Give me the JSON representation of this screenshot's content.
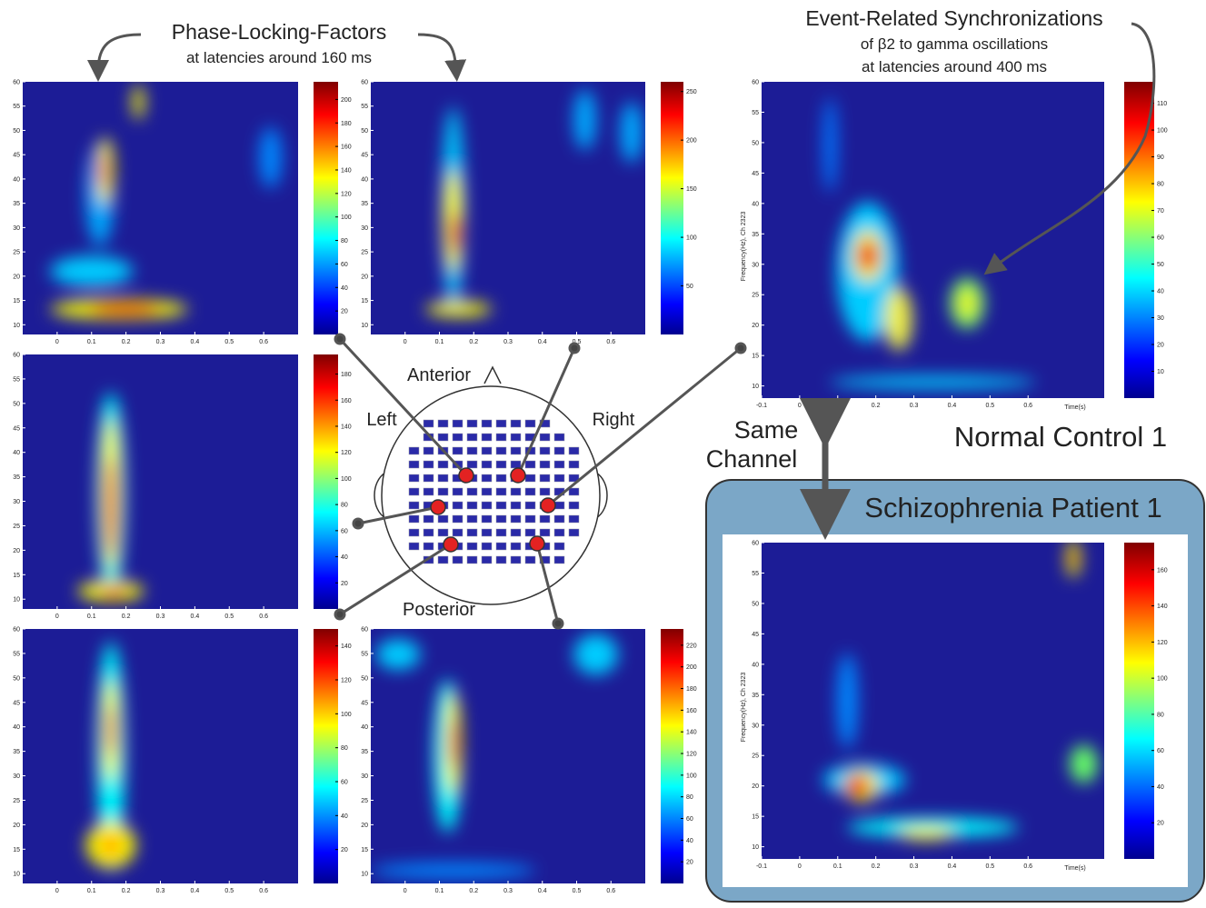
{
  "plf": {
    "title": "Phase-Locking-Factors",
    "subtitle": "at latencies around 160 ms"
  },
  "ers": {
    "title": "Event-Related Synchronizations",
    "line2": "of β2 to gamma oscillations",
    "line3": "at latencies around 400 ms"
  },
  "head": {
    "anterior": "Anterior",
    "left": "Left",
    "right": "Right",
    "posterior": "Posterior"
  },
  "same_channel": [
    "Same",
    "Channel"
  ],
  "normal_label": "Normal Control 1",
  "patient_label": "Schizophrenia Patient 1",
  "panels": [
    {
      "xlim": [
        -0.1,
        0.7
      ],
      "ylim": [
        8,
        60
      ],
      "xticks": [
        0,
        0.1,
        0.2,
        0.3,
        0.4,
        0.5,
        0.6
      ],
      "yticks": [
        10,
        15,
        20,
        25,
        30,
        35,
        40,
        45,
        50,
        55,
        60
      ],
      "clim": [
        0,
        215
      ],
      "cticks": [
        20,
        40,
        60,
        80,
        100,
        120,
        140,
        160,
        180,
        200
      ]
    },
    {
      "xlim": [
        -0.1,
        0.7
      ],
      "ylim": [
        8,
        60
      ],
      "xticks": [
        0,
        0.1,
        0.2,
        0.3,
        0.4,
        0.5,
        0.6
      ],
      "yticks": [
        10,
        15,
        20,
        25,
        30,
        35,
        40,
        45,
        50,
        55,
        60
      ],
      "clim": [
        0,
        260
      ],
      "cticks": [
        50,
        100,
        150,
        200,
        250
      ]
    },
    {
      "xlim": [
        -0.1,
        0.7
      ],
      "ylim": [
        8,
        60
      ],
      "xticks": [
        0,
        0.1,
        0.2,
        0.3,
        0.4,
        0.5,
        0.6
      ],
      "yticks": [
        10,
        15,
        20,
        25,
        30,
        35,
        40,
        45,
        50,
        55,
        60
      ],
      "clim": [
        0,
        195
      ],
      "cticks": [
        20,
        40,
        60,
        80,
        100,
        120,
        140,
        160,
        180
      ]
    },
    {
      "xlim": [
        -0.1,
        0.7
      ],
      "ylim": [
        8,
        60
      ],
      "xticks": [
        0,
        0.1,
        0.2,
        0.3,
        0.4,
        0.5,
        0.6
      ],
      "yticks": [
        10,
        15,
        20,
        25,
        30,
        35,
        40,
        45,
        50,
        55,
        60
      ],
      "clim": [
        0,
        150
      ],
      "cticks": [
        20,
        40,
        60,
        80,
        100,
        120,
        140
      ]
    },
    {
      "xlim": [
        -0.1,
        0.7
      ],
      "ylim": [
        8,
        60
      ],
      "xticks": [
        0,
        0.1,
        0.2,
        0.3,
        0.4,
        0.5,
        0.6
      ],
      "yticks": [
        10,
        15,
        20,
        25,
        30,
        35,
        40,
        45,
        50,
        55,
        60
      ],
      "clim": [
        0,
        235
      ],
      "cticks": [
        20,
        40,
        60,
        80,
        100,
        120,
        140,
        160,
        180,
        200,
        220
      ]
    },
    {
      "xlim": [
        -0.1,
        0.8
      ],
      "ylim": [
        8,
        60
      ],
      "xticks": [
        -0.1,
        0,
        0.1,
        0.2,
        0.3,
        0.4,
        0.5,
        0.6
      ],
      "yticks": [
        10,
        15,
        20,
        25,
        30,
        35,
        40,
        45,
        50,
        55,
        60
      ],
      "clim": [
        0,
        118
      ],
      "cticks": [
        10,
        20,
        30,
        40,
        50,
        60,
        70,
        80,
        90,
        100,
        110
      ],
      "xlabel": "Time(s)",
      "ylabel": "Frequency(Hz), Ch 2323"
    },
    {
      "xlim": [
        -0.1,
        0.8
      ],
      "ylim": [
        8,
        60
      ],
      "xticks": [
        -0.1,
        0,
        0.1,
        0.2,
        0.3,
        0.4,
        0.5,
        0.6
      ],
      "yticks": [
        10,
        15,
        20,
        25,
        30,
        35,
        40,
        45,
        50,
        55,
        60
      ],
      "clim": [
        0,
        175
      ],
      "cticks": [
        20,
        40,
        60,
        80,
        100,
        120,
        140,
        160
      ],
      "xlabel": "Time(s)",
      "ylabel": "Frequency(Hz), Ch 2323"
    }
  ]
}
